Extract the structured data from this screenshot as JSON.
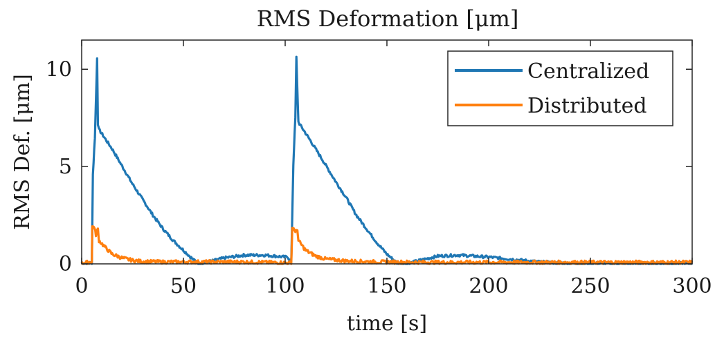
{
  "chart_data": {
    "type": "line",
    "title": "RMS Deformation [μm]",
    "xlabel": "time [s]",
    "ylabel": "RMS Def. [μm]",
    "xlim": [
      0,
      300
    ],
    "ylim": [
      0,
      11.5
    ],
    "xticks": [
      0,
      50,
      100,
      150,
      200,
      250,
      300
    ],
    "yticks": [
      0,
      5,
      10
    ],
    "grid": false,
    "legend_position": "top-right",
    "series": [
      {
        "name": "Centralized",
        "color": "#1f77b4",
        "points": [
          [
            0,
            0.02
          ],
          [
            5,
            0.05
          ],
          [
            5.5,
            4.6
          ],
          [
            6.5,
            6.5
          ],
          [
            7.6,
            10.6
          ],
          [
            8.0,
            7.2
          ],
          [
            8.5,
            6.9
          ],
          [
            15,
            5.9
          ],
          [
            20,
            5.0
          ],
          [
            25,
            4.1
          ],
          [
            30,
            3.3
          ],
          [
            35,
            2.5
          ],
          [
            40,
            1.8
          ],
          [
            45,
            1.2
          ],
          [
            50,
            0.7
          ],
          [
            55,
            0.2
          ],
          [
            58,
            0.0
          ],
          [
            62,
            0.1
          ],
          [
            70,
            0.3
          ],
          [
            80,
            0.45
          ],
          [
            90,
            0.45
          ],
          [
            100,
            0.35
          ],
          [
            101,
            0.4
          ],
          [
            103,
            0.05
          ],
          [
            104,
            5.1
          ],
          [
            105,
            7.5
          ],
          [
            105.5,
            10.6
          ],
          [
            106.5,
            7.3
          ],
          [
            107,
            7.2
          ],
          [
            112,
            6.4
          ],
          [
            118,
            5.4
          ],
          [
            125,
            4.2
          ],
          [
            130,
            3.4
          ],
          [
            135,
            2.5
          ],
          [
            140,
            1.8
          ],
          [
            145,
            1.1
          ],
          [
            150,
            0.5
          ],
          [
            155,
            0.05
          ],
          [
            160,
            0.0
          ],
          [
            165,
            0.15
          ],
          [
            175,
            0.4
          ],
          [
            185,
            0.45
          ],
          [
            200,
            0.35
          ],
          [
            215,
            0.2
          ],
          [
            225,
            0.1
          ],
          [
            235,
            0.05
          ],
          [
            245,
            0.02
          ],
          [
            300,
            0.02
          ]
        ]
      },
      {
        "name": "Distributed",
        "color": "#ff7f0e",
        "points": [
          [
            0,
            0.05
          ],
          [
            5,
            0.1
          ],
          [
            5.2,
            1.9
          ],
          [
            6,
            1.95
          ],
          [
            7,
            1.5
          ],
          [
            8,
            1.8
          ],
          [
            8.5,
            1.2
          ],
          [
            12,
            0.8
          ],
          [
            15,
            0.5
          ],
          [
            20,
            0.3
          ],
          [
            25,
            0.18
          ],
          [
            30,
            0.12
          ],
          [
            40,
            0.1
          ],
          [
            60,
            0.1
          ],
          [
            80,
            0.1
          ],
          [
            103,
            0.05
          ],
          [
            103.5,
            1.85
          ],
          [
            104.5,
            1.8
          ],
          [
            105,
            1.6
          ],
          [
            106,
            1.8
          ],
          [
            106.5,
            1.2
          ],
          [
            110,
            0.7
          ],
          [
            115,
            0.4
          ],
          [
            120,
            0.25
          ],
          [
            130,
            0.15
          ],
          [
            145,
            0.1
          ],
          [
            175,
            0.08
          ],
          [
            200,
            0.08
          ],
          [
            250,
            0.08
          ],
          [
            300,
            0.08
          ]
        ]
      }
    ]
  }
}
